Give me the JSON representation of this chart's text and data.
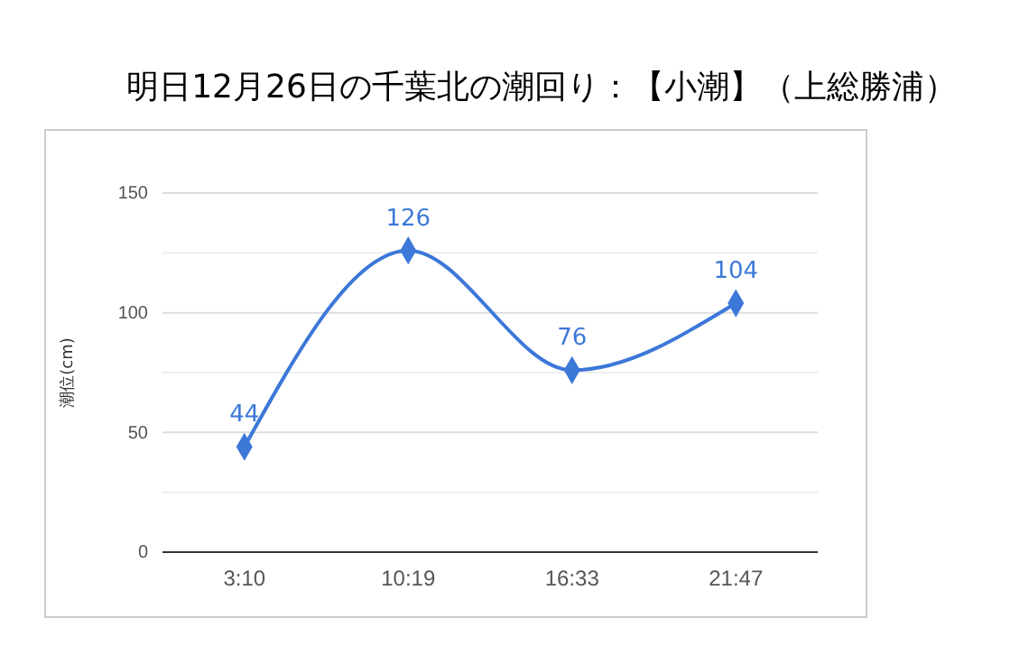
{
  "chart_data": {
    "type": "line",
    "title": "明日12月26日の千葉北の潮回り：【小潮】（上総勝浦）",
    "ylabel": "潮位(cm)",
    "categories": [
      "3:10",
      "10:19",
      "16:33",
      "21:47"
    ],
    "series": [
      {
        "color": "#3c78d8",
        "values": [
          44,
          126,
          76,
          104
        ]
      }
    ],
    "ylim": [
      0,
      150
    ],
    "yticks": [
      0,
      {
        "value": 25,
        "label": null
      },
      50,
      {
        "value": 75,
        "label": null
      },
      100,
      {
        "value": 125,
        "label": null
      },
      150
    ],
    "grid": "y",
    "data_labels": true,
    "marker": "diamond",
    "line_style": "solid"
  }
}
